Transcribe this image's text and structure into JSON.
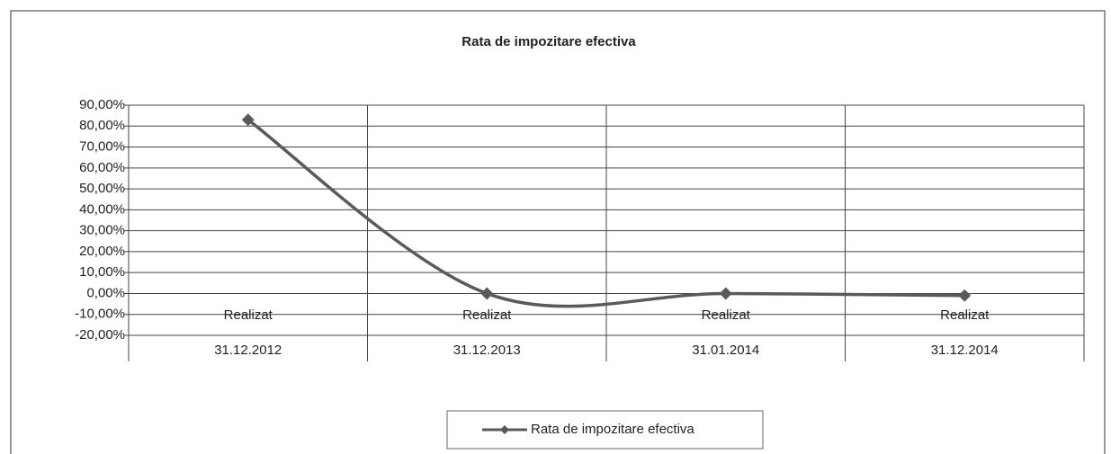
{
  "chart_data": {
    "type": "line",
    "title": "Rata de impozitare efectiva",
    "categories": [
      [
        "Realizat",
        "31.12.2012"
      ],
      [
        "Realizat",
        "31.12.2013"
      ],
      [
        "Realizat",
        "31.01.2014"
      ],
      [
        "Realizat",
        "31.12.2014"
      ]
    ],
    "series": [
      {
        "name": "Rata de impozitare efectiva",
        "color": "#5a5a5a",
        "values": [
          83,
          0,
          0,
          -1
        ]
      }
    ],
    "ylim": [
      -20,
      90
    ],
    "yticks": [
      {
        "value": -20,
        "label": "-20,00%"
      },
      {
        "value": -10,
        "label": "-10,00%"
      },
      {
        "value": 0,
        "label": "0,00%"
      },
      {
        "value": 10,
        "label": "10,00%"
      },
      {
        "value": 20,
        "label": "20,00%"
      },
      {
        "value": 30,
        "label": "30,00%"
      },
      {
        "value": 40,
        "label": "40,00%"
      },
      {
        "value": 50,
        "label": "50,00%"
      },
      {
        "value": 60,
        "label": "60,00%"
      },
      {
        "value": 70,
        "label": "70,00%"
      },
      {
        "value": 80,
        "label": "80,00%"
      },
      {
        "value": 90,
        "label": "90,00%"
      }
    ],
    "grid": true,
    "smooth": true,
    "legend": "bottom"
  }
}
